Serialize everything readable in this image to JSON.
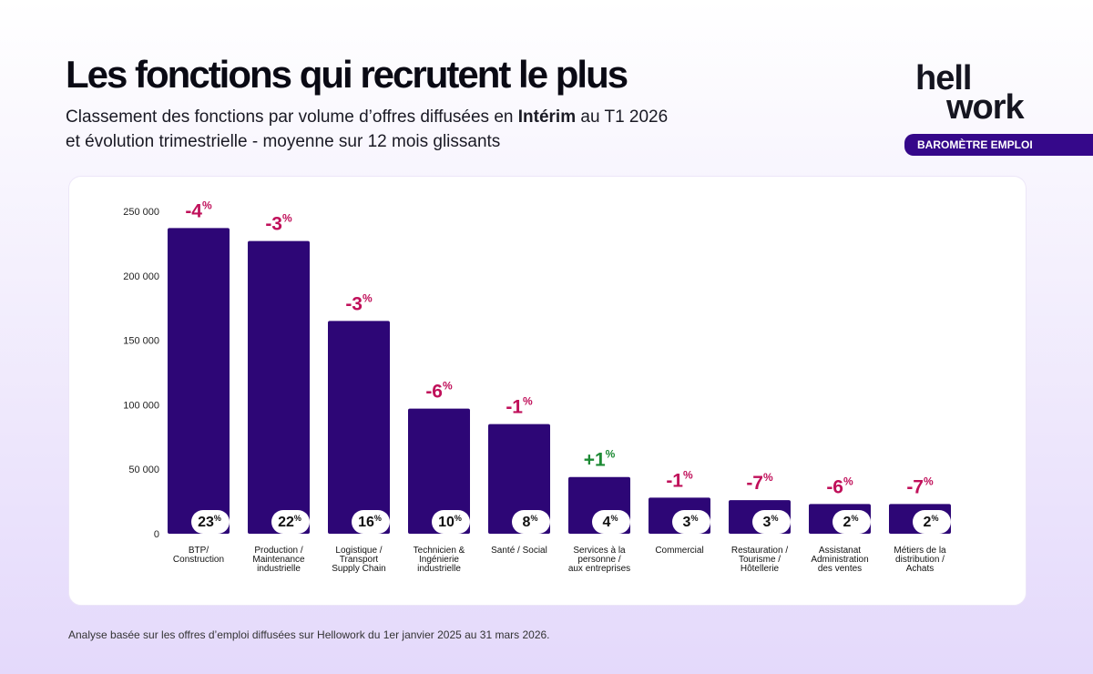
{
  "header": {
    "title": "Les fonctions qui recrutent le plus",
    "subtitle_parts": [
      "Classement des fonctions par volume d’offres diffusées en ",
      "Intérim",
      " au T1 2026"
    ],
    "subtitle_line2": "et évolution trimestrielle - moyenne sur 12 mois glissants",
    "logo": [
      "hell",
      "work"
    ],
    "badge": "BAROMÈTRE EMPLOI"
  },
  "chart_data": {
    "type": "bar",
    "categories": [
      "BTP/\nConstruction",
      "Production /\nMaintenance\nindustrielle",
      "Logistique /\nTransport\nSupply Chain",
      "Technicien &\nIngénierie\nindustrielle",
      "Santé / Social",
      "Services à la\npersonne /\naux entreprises",
      "Commercial",
      "Restauration /\nTourisme /\nHôtellerie",
      "Assistanat\nAdministration\ndes ventes",
      "Métiers de la\ndistribution /\nAchats"
    ],
    "values": [
      237000,
      227000,
      165000,
      97000,
      85000,
      44000,
      28000,
      26000,
      23000,
      23000
    ],
    "color": "#2d0676",
    "shares": [
      23,
      22,
      16,
      10,
      8,
      4,
      3,
      3,
      2,
      2
    ],
    "share_unit": "%",
    "changes": [
      -4,
      -3,
      -3,
      -6,
      -1,
      1,
      -1,
      -7,
      -6,
      -7
    ],
    "change_labels": [
      "-4",
      "-3",
      "-3",
      "-6",
      "-1",
      "+1",
      "-1",
      "-7",
      "-6",
      "-7"
    ],
    "negative_color": "#c0105a",
    "positive_color": "#1c8a34",
    "ylim": [
      0,
      250000
    ],
    "yticks": [
      0,
      {
        "value": 50000,
        "label": "50 000"
      },
      {
        "value": 100000,
        "label": "100 000"
      },
      {
        "value": 150000,
        "label": "150 000"
      },
      {
        "value": 200000,
        "label": "200 000"
      },
      {
        "value": 250000,
        "label": "250 000"
      }
    ],
    "grid": false
  },
  "footnote": "Analyse basée sur les offres d’emploi diffusées sur Hellowork du 1er janvier 2025 au 31 mars 2026."
}
